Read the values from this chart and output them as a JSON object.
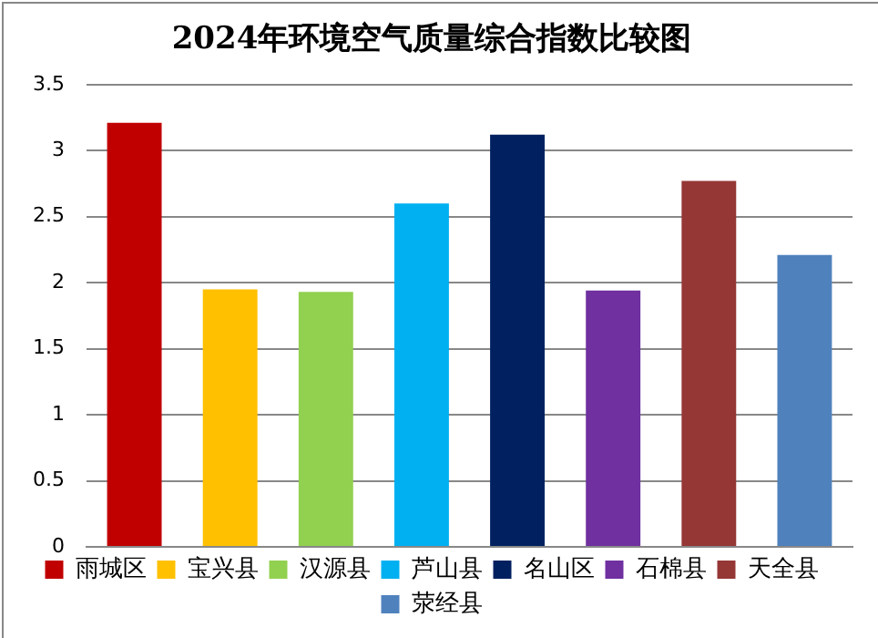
{
  "chart_data": {
    "type": "bar",
    "title": "2024年环境空气质量综合指数比较图",
    "categories": [
      null,
      null,
      null,
      null,
      null,
      null,
      null,
      null
    ],
    "series": [
      {
        "name": "雨城区",
        "color": "#c00000",
        "values": [
          3.21,
          null,
          null,
          null,
          null,
          null,
          null,
          null
        ]
      },
      {
        "name": "宝兴县",
        "color": "#ffc000",
        "values": [
          null,
          1.95,
          null,
          null,
          null,
          null,
          null,
          null
        ]
      },
      {
        "name": "汉源县",
        "color": "#92d050",
        "values": [
          null,
          null,
          1.93,
          null,
          null,
          null,
          null,
          null
        ]
      },
      {
        "name": "芦山县",
        "color": "#00b0f0",
        "values": [
          null,
          null,
          null,
          2.6,
          null,
          null,
          null,
          null
        ]
      },
      {
        "name": "名山区",
        "color": "#002060",
        "values": [
          null,
          null,
          null,
          null,
          3.12,
          null,
          null,
          null
        ]
      },
      {
        "name": "石棉县",
        "color": "#7030a0",
        "values": [
          null,
          null,
          null,
          null,
          null,
          1.94,
          null,
          null
        ]
      },
      {
        "name": "天全县",
        "color": "#953735",
        "values": [
          null,
          null,
          null,
          null,
          null,
          null,
          2.77,
          null
        ]
      },
      {
        "name": "荥经县",
        "color": "#4f81bd",
        "values": [
          null,
          null,
          null,
          null,
          null,
          null,
          null,
          2.21
        ]
      }
    ],
    "ylim": [
      0,
      3.5
    ],
    "yticks": [
      0,
      0.5,
      1,
      1.5,
      2,
      2.5,
      3,
      3.5
    ],
    "grid": "y",
    "legend": "bottom"
  }
}
